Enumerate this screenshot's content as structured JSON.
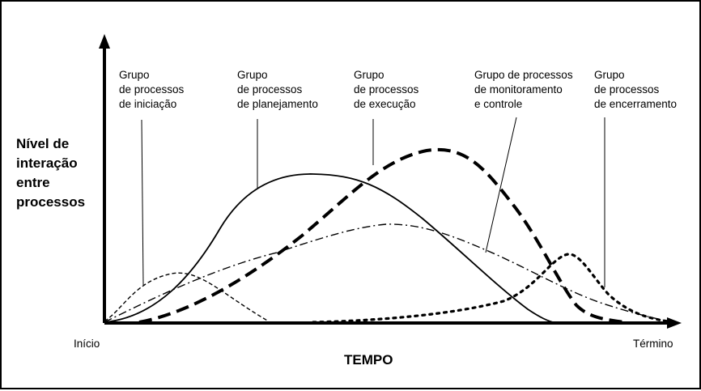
{
  "axes": {
    "y_label_lines": [
      "Nível de",
      "interação",
      "entre",
      "processos"
    ],
    "x_label": "TEMPO",
    "x_start": "Início",
    "x_end": "Término"
  },
  "groups": [
    {
      "lines": [
        "Grupo",
        "de processos",
        "de iniciação"
      ]
    },
    {
      "lines": [
        "Grupo",
        "de processos",
        "de planejamento"
      ]
    },
    {
      "lines": [
        "Grupo",
        "de processos",
        "de execução"
      ]
    },
    {
      "lines": [
        "Grupo de processos",
        "de monitoramento",
        "e controle"
      ]
    },
    {
      "lines": [
        "Grupo",
        "de processos",
        "de encerramento"
      ]
    }
  ]
}
